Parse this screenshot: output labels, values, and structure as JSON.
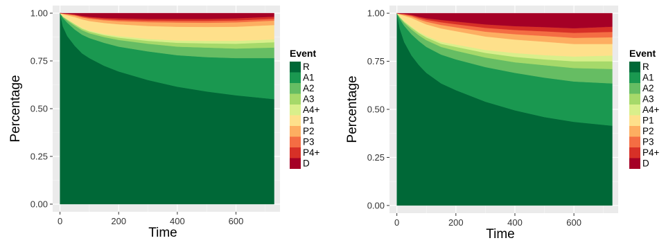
{
  "chart_data": [
    {
      "type": "area",
      "stacked": true,
      "xlabel": "Time",
      "ylabel": "Percentage",
      "xlim": [
        -25,
        750
      ],
      "ylim": [
        -0.04,
        1.04
      ],
      "x_ticks": [
        0,
        200,
        400,
        600
      ],
      "x_tick_labels": [
        "0",
        "200",
        "400",
        "600"
      ],
      "y_ticks": [
        0,
        0.25,
        0.5,
        0.75,
        1.0
      ],
      "y_tick_labels": [
        "0.00",
        "0.25",
        "0.50",
        "0.75",
        "1.00"
      ],
      "grid": true,
      "panel_background": "#ebebeb",
      "legend_title": "Event",
      "legend_position": "right",
      "x": [
        0,
        10,
        25,
        50,
        75,
        100,
        150,
        200,
        300,
        400,
        500,
        600,
        730
      ],
      "series": [
        {
          "name": "R",
          "color": "#006837",
          "values": [
            1.0,
            0.93,
            0.88,
            0.83,
            0.79,
            0.765,
            0.725,
            0.695,
            0.65,
            0.615,
            0.59,
            0.57,
            0.55
          ]
        },
        {
          "name": "A1",
          "color": "#1a9850",
          "values": [
            0,
            0.045,
            0.07,
            0.085,
            0.098,
            0.105,
            0.12,
            0.13,
            0.15,
            0.165,
            0.18,
            0.195,
            0.215
          ]
        },
        {
          "name": "A2",
          "color": "#66bd63",
          "values": [
            0,
            0.005,
            0.012,
            0.02,
            0.023,
            0.025,
            0.03,
            0.035,
            0.04,
            0.045,
            0.05,
            0.05,
            0.055
          ]
        },
        {
          "name": "A3",
          "color": "#a6d96a",
          "values": [
            0,
            0.002,
            0.005,
            0.007,
            0.008,
            0.009,
            0.01,
            0.012,
            0.015,
            0.02,
            0.022,
            0.025,
            0.028
          ]
        },
        {
          "name": "A4+",
          "color": "#d9ef8b",
          "values": [
            0,
            0.001,
            0.002,
            0.003,
            0.004,
            0.005,
            0.006,
            0.008,
            0.01,
            0.012,
            0.013,
            0.015,
            0.015
          ]
        },
        {
          "name": "P1",
          "color": "#fee08b",
          "values": [
            0,
            0.012,
            0.02,
            0.035,
            0.045,
            0.05,
            0.058,
            0.062,
            0.068,
            0.072,
            0.073,
            0.074,
            0.075
          ]
        },
        {
          "name": "P2",
          "color": "#fdae61",
          "values": [
            0,
            0.002,
            0.005,
            0.008,
            0.01,
            0.012,
            0.014,
            0.016,
            0.02,
            0.022,
            0.022,
            0.023,
            0.023
          ]
        },
        {
          "name": "P3",
          "color": "#f46d43",
          "values": [
            0,
            0.001,
            0.002,
            0.003,
            0.004,
            0.005,
            0.006,
            0.007,
            0.008,
            0.009,
            0.01,
            0.01,
            0.01
          ]
        },
        {
          "name": "P4+",
          "color": "#d73027",
          "values": [
            0,
            0.001,
            0.002,
            0.003,
            0.004,
            0.005,
            0.006,
            0.008,
            0.009,
            0.01,
            0.01,
            0.011,
            0.011
          ]
        },
        {
          "name": "D",
          "color": "#a50026",
          "values": [
            0,
            0.003,
            0.002,
            0.006,
            0.014,
            0.019,
            0.025,
            0.027,
            0.03,
            0.03,
            0.03,
            0.027,
            0.018
          ]
        }
      ]
    },
    {
      "type": "area",
      "stacked": true,
      "xlabel": "Time",
      "ylabel": "Percentage",
      "xlim": [
        -25,
        750
      ],
      "ylim": [
        -0.04,
        1.04
      ],
      "x_ticks": [
        0,
        200,
        400,
        600
      ],
      "x_tick_labels": [
        "0",
        "200",
        "400",
        "600"
      ],
      "y_ticks": [
        0,
        0.25,
        0.5,
        0.75,
        1.0
      ],
      "y_tick_labels": [
        "0.00",
        "0.25",
        "0.50",
        "0.75",
        "1.00"
      ],
      "grid": true,
      "panel_background": "#ebebeb",
      "legend_title": "Event",
      "legend_position": "right",
      "x": [
        0,
        10,
        25,
        50,
        75,
        100,
        150,
        200,
        300,
        400,
        500,
        600,
        730
      ],
      "series": [
        {
          "name": "R",
          "color": "#006837",
          "values": [
            1.0,
            0.92,
            0.85,
            0.78,
            0.73,
            0.69,
            0.635,
            0.6,
            0.54,
            0.495,
            0.46,
            0.435,
            0.415
          ]
        },
        {
          "name": "A1",
          "color": "#1a9850",
          "values": [
            0,
            0.05,
            0.085,
            0.11,
            0.125,
            0.135,
            0.15,
            0.16,
            0.18,
            0.195,
            0.205,
            0.21,
            0.22
          ]
        },
        {
          "name": "A2",
          "color": "#66bd63",
          "values": [
            0,
            0.007,
            0.015,
            0.025,
            0.03,
            0.035,
            0.04,
            0.045,
            0.05,
            0.055,
            0.065,
            0.07,
            0.075
          ]
        },
        {
          "name": "A3",
          "color": "#a6d96a",
          "values": [
            0,
            0.003,
            0.006,
            0.01,
            0.012,
            0.014,
            0.016,
            0.02,
            0.024,
            0.028,
            0.03,
            0.035,
            0.04
          ]
        },
        {
          "name": "A4+",
          "color": "#d9ef8b",
          "values": [
            0,
            0.002,
            0.003,
            0.005,
            0.006,
            0.008,
            0.01,
            0.012,
            0.015,
            0.02,
            0.022,
            0.025,
            0.03
          ]
        },
        {
          "name": "P1",
          "color": "#fee08b",
          "values": [
            0,
            0.012,
            0.028,
            0.045,
            0.055,
            0.06,
            0.07,
            0.07,
            0.07,
            0.07,
            0.07,
            0.065,
            0.06
          ]
        },
        {
          "name": "P2",
          "color": "#fdae61",
          "values": [
            0,
            0.002,
            0.005,
            0.008,
            0.01,
            0.014,
            0.018,
            0.02,
            0.025,
            0.028,
            0.03,
            0.032,
            0.035
          ]
        },
        {
          "name": "P3",
          "color": "#f46d43",
          "values": [
            0,
            0.001,
            0.003,
            0.005,
            0.008,
            0.01,
            0.014,
            0.016,
            0.02,
            0.022,
            0.024,
            0.026,
            0.028
          ]
        },
        {
          "name": "P4+",
          "color": "#d73027",
          "values": [
            0,
            0.001,
            0.002,
            0.004,
            0.006,
            0.008,
            0.012,
            0.014,
            0.018,
            0.02,
            0.022,
            0.024,
            0.027
          ]
        },
        {
          "name": "D",
          "color": "#a50026",
          "values": [
            0,
            0.002,
            0.003,
            0.008,
            0.018,
            0.026,
            0.035,
            0.043,
            0.058,
            0.067,
            0.072,
            0.078,
            0.07
          ]
        }
      ]
    }
  ]
}
